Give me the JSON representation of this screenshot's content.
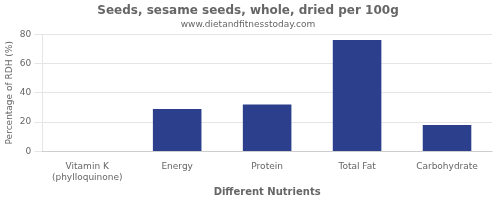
{
  "chart_data": {
    "type": "bar",
    "title": "Seeds, sesame seeds, whole, dried per 100g",
    "subtitle": "www.dietandfitnesstoday.com",
    "xlabel": "Different Nutrients",
    "ylabel": "Percentage of RDH (%)",
    "categories": [
      "Vitamin K (phylloquinone)",
      "Energy",
      "Protein",
      "Total Fat",
      "Carbohydrate"
    ],
    "values": [
      0,
      29,
      32,
      76,
      18
    ],
    "color": "#2b3f8c",
    "ylim": [
      0,
      80
    ],
    "yticks": [
      0,
      20,
      40,
      60,
      80
    ],
    "grid": true
  }
}
